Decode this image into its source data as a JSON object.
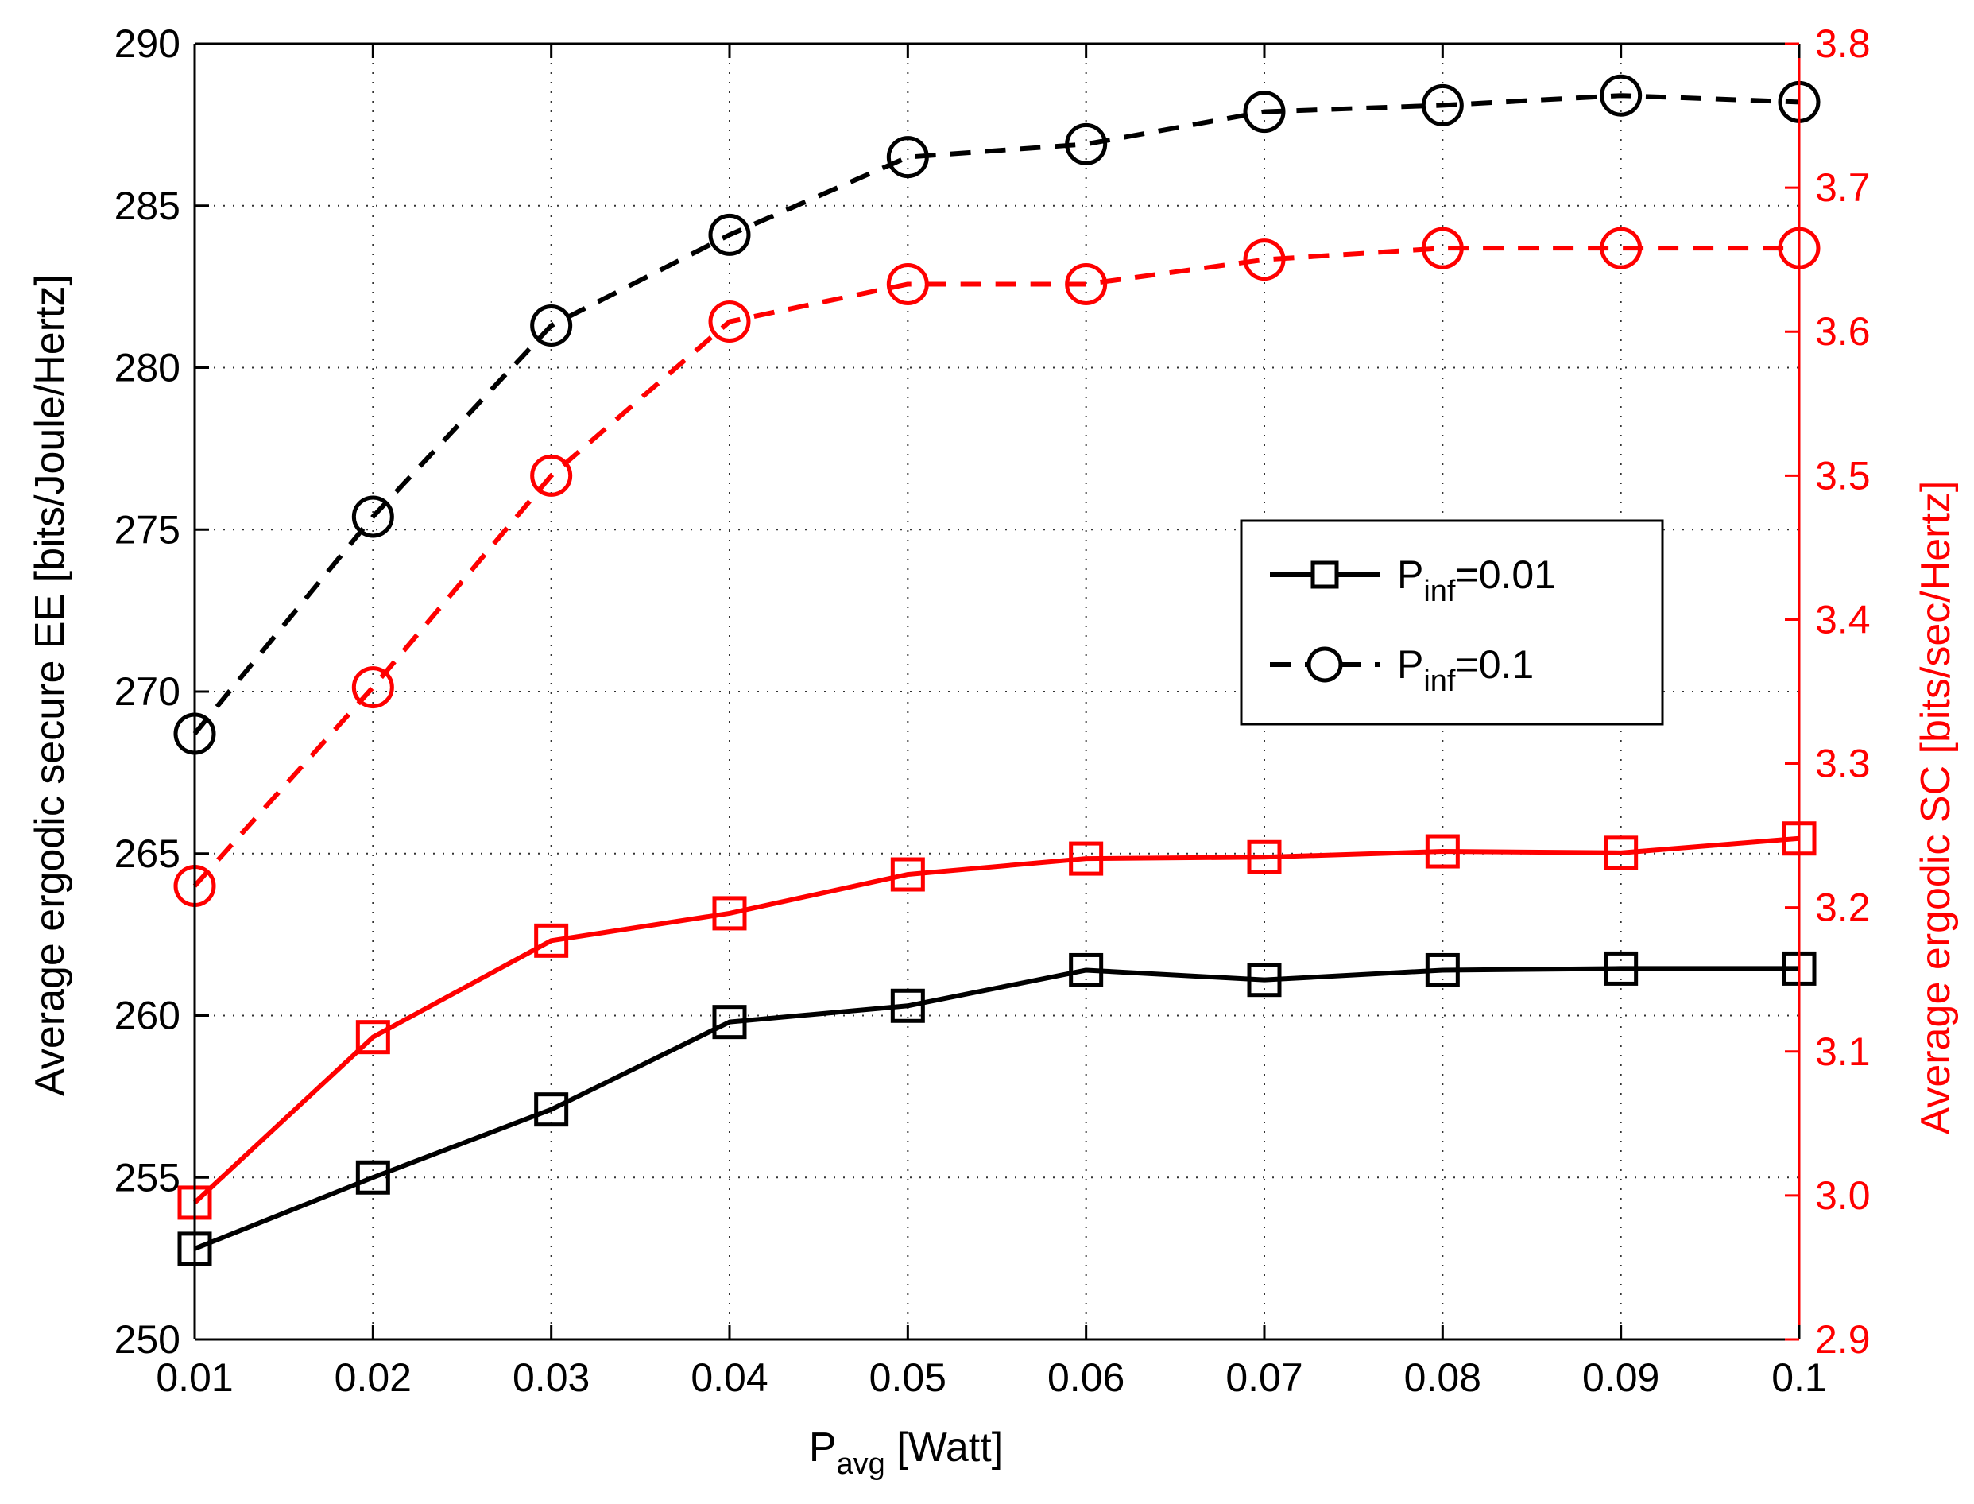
{
  "chart_data": {
    "type": "line",
    "x": [
      0.01,
      0.02,
      0.03,
      0.04,
      0.05,
      0.06,
      0.07,
      0.08,
      0.09,
      0.1
    ],
    "x_tick_labels": [
      "0.01",
      "0.02",
      "0.03",
      "0.04",
      "0.05",
      "0.06",
      "0.07",
      "0.08",
      "0.09",
      "0.1"
    ],
    "xlim": [
      0.01,
      0.1
    ],
    "xlabel": {
      "main": "P",
      "sub": "avg",
      "rest": " [Watt]"
    },
    "left_axis": {
      "label": "Average ergodic secure EE [bits/Joule/Hertz]",
      "ylim": [
        250,
        290
      ],
      "ticks": [
        250,
        255,
        260,
        265,
        270,
        275,
        280,
        285,
        290
      ],
      "tick_labels": [
        "250",
        "255",
        "260",
        "265",
        "270",
        "275",
        "280",
        "285",
        "290"
      ],
      "color": "#000000"
    },
    "right_axis": {
      "label": "Average ergodic SC [bits/sec/Hertz]",
      "ylim": [
        2.9,
        3.8
      ],
      "ticks": [
        2.9,
        3.0,
        3.1,
        3.2,
        3.3,
        3.4,
        3.5,
        3.6,
        3.7,
        3.8
      ],
      "tick_labels": [
        "2.9",
        "3.0",
        "3.1",
        "3.2",
        "3.3",
        "3.4",
        "3.5",
        "3.6",
        "3.7",
        "3.8"
      ],
      "color": "#ff0000"
    },
    "grid": true,
    "legend_position": "center-right",
    "legend": [
      {
        "main": "P",
        "sub": "inf",
        "rest": "=0.01",
        "marker": "square",
        "dash": "solid"
      },
      {
        "main": "P",
        "sub": "inf",
        "rest": "=0.1",
        "marker": "circle",
        "dash": "dashed"
      }
    ],
    "series": [
      {
        "axis": "left",
        "color": "#000000",
        "marker": "square",
        "dash": "solid",
        "values": [
          252.8,
          255.0,
          257.1,
          259.8,
          260.3,
          261.4,
          261.1,
          261.4,
          261.45,
          261.45
        ]
      },
      {
        "axis": "left",
        "color": "#000000",
        "marker": "circle",
        "dash": "dashed",
        "values": [
          268.7,
          275.4,
          281.3,
          284.1,
          286.5,
          286.9,
          287.9,
          288.1,
          288.4,
          288.2
        ]
      },
      {
        "axis": "right",
        "color": "#ff0000",
        "marker": "square",
        "dash": "solid",
        "values": [
          2.995,
          3.11,
          3.177,
          3.196,
          3.223,
          3.234,
          3.235,
          3.239,
          3.238,
          3.248
        ]
      },
      {
        "axis": "right",
        "color": "#ff0000",
        "marker": "circle",
        "dash": "dashed",
        "values": [
          3.215,
          3.353,
          3.5,
          3.607,
          3.633,
          3.633,
          3.65,
          3.658,
          3.658,
          3.658
        ]
      }
    ]
  }
}
